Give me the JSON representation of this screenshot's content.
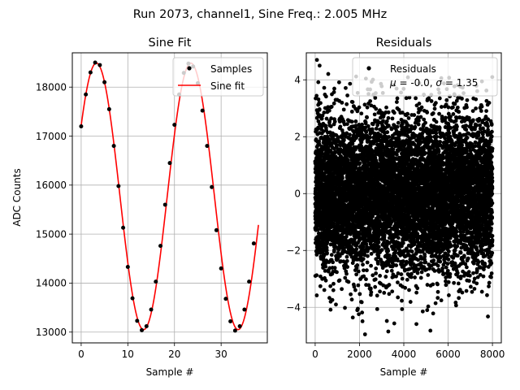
{
  "figure": {
    "suptitle": "Run 2073, channel1, Sine Freq.: 2.005 MHz"
  },
  "chart_data": [
    {
      "type": "line",
      "title": "Sine Fit",
      "xlabel": "Sample #",
      "ylabel": "ADC Counts",
      "xlim": [
        -1.9,
        39.9
      ],
      "ylim": [
        12780,
        18700
      ],
      "xticks": [
        0,
        10,
        20,
        30
      ],
      "yticks": [
        13000,
        14000,
        15000,
        16000,
        17000,
        18000
      ],
      "grid": true,
      "legend_position": "top-right",
      "series": [
        {
          "name": "Samples",
          "kind": "scatter",
          "color": "#000000",
          "x": [
            0,
            1,
            2,
            3,
            4,
            5,
            6,
            7,
            8,
            9,
            10,
            11,
            12,
            13,
            14,
            15,
            16,
            17,
            18,
            19,
            20,
            21,
            22,
            23,
            24,
            25,
            26,
            27,
            28,
            29,
            30,
            31,
            32,
            33,
            34,
            35,
            36,
            37
          ],
          "y": [
            17200,
            17850,
            18300,
            18500,
            18450,
            18100,
            17550,
            16800,
            15980,
            15130,
            14330,
            13690,
            13230,
            13040,
            13120,
            13460,
            14030,
            14760,
            15600,
            16450,
            17230,
            17850,
            18290,
            18480,
            18420,
            18080,
            17520,
            16800,
            15960,
            15080,
            14300,
            13680,
            13220,
            13030,
            13120,
            13460,
            14030,
            14810
          ]
        },
        {
          "name": "Sine fit",
          "kind": "line",
          "color": "#ff0000",
          "model": {
            "offset": 15770,
            "amplitude": 2720,
            "period": 20.25,
            "phase": 0.56
          },
          "x_range": [
            0,
            38
          ]
        }
      ]
    },
    {
      "type": "scatter",
      "title": "Residuals",
      "xlabel": "Sample #",
      "ylabel": "",
      "xlim": [
        -400,
        8400
      ],
      "ylim": [
        -5.25,
        4.95
      ],
      "xticks": [
        0,
        2000,
        4000,
        6000,
        8000
      ],
      "yticks": [
        -4,
        -2,
        0,
        2,
        4
      ],
      "grid": true,
      "legend_position": "top-right",
      "series": [
        {
          "name": "Residuals",
          "kind": "scatter",
          "color": "#000000",
          "n": 8000,
          "mean": 0.0,
          "std": 1.35,
          "x_range": [
            0,
            8000
          ]
        }
      ],
      "legend_stats": {
        "prefix": "= -0.0, ",
        "suffix": "= 1.35"
      },
      "extreme_points": [
        [
          80,
          4.7
        ],
        [
          200,
          4.5
        ],
        [
          2250,
          -4.95
        ],
        [
          5200,
          -4.82
        ],
        [
          3300,
          -4.85
        ],
        [
          1900,
          -4.1
        ],
        [
          700,
          -3.8
        ]
      ]
    }
  ]
}
